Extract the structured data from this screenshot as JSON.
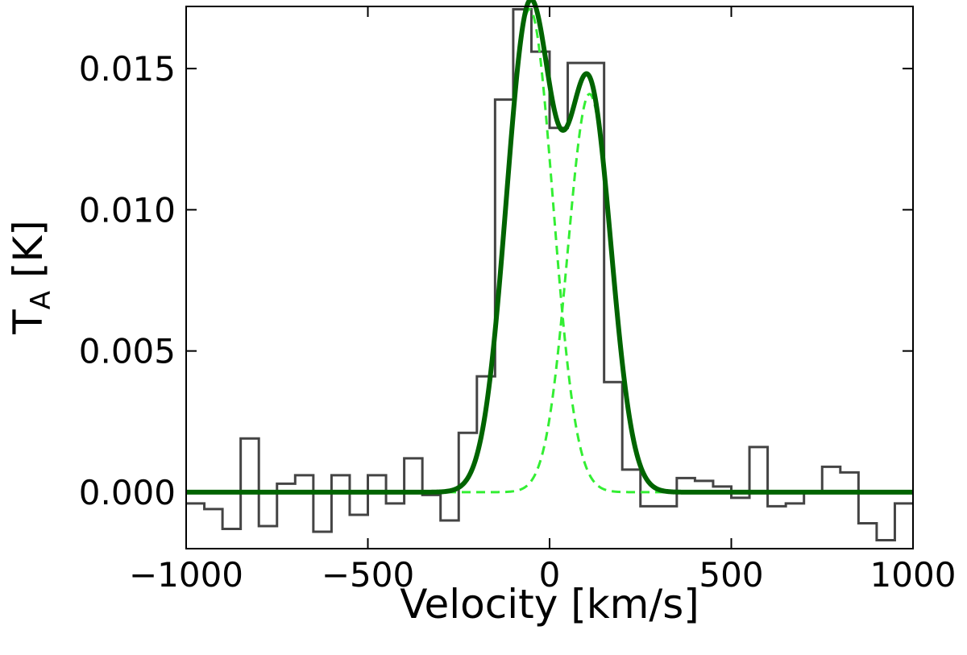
{
  "chart_data": {
    "type": "line",
    "title": "",
    "xlabel": "Velocity [km/s]",
    "ylabel_main": "T",
    "ylabel_sub": "A",
    "ylabel_unit": " [K]",
    "xlim": [
      -1000,
      1000
    ],
    "ylim": [
      -0.002,
      0.0172
    ],
    "xticks": [
      -1000,
      -500,
      0,
      500,
      1000
    ],
    "xtick_labels": [
      "−1000",
      "−500",
      "0",
      "500",
      "1000"
    ],
    "yticks": [
      0.0,
      0.005,
      0.01,
      0.015
    ],
    "ytick_labels": [
      "0.000",
      "0.005",
      "0.010",
      "0.015"
    ],
    "grid": false,
    "colors": {
      "spectrum": "#444444",
      "total_fit": "#006400",
      "components": "#33ee33"
    },
    "series": [
      {
        "kind": "step",
        "x_edges": [
          -1000,
          -950,
          -900,
          -850,
          -800,
          -750,
          -700,
          -650,
          -600,
          -550,
          -500,
          -450,
          -400,
          -350,
          -300,
          -250,
          -200,
          -150,
          -100,
          -50,
          0,
          50,
          100,
          150,
          200,
          250,
          300,
          350,
          400,
          450,
          500,
          550,
          600,
          650,
          700,
          750,
          800,
          850,
          900,
          950,
          1000
        ],
        "values": [
          -0.0004,
          -0.0006,
          -0.0013,
          0.0019,
          -0.0012,
          0.0003,
          0.0006,
          -0.0014,
          0.0006,
          -0.0008,
          0.0006,
          -0.0004,
          0.0012,
          -0.0001,
          -0.001,
          0.0021,
          0.0041,
          0.0139,
          0.0171,
          0.0156,
          0.0129,
          0.0152,
          0.0152,
          0.0039,
          0.0008,
          -0.0005,
          -0.0005,
          0.0005,
          0.0004,
          0.0002,
          -0.0002,
          0.0016,
          -0.0005,
          -0.0004,
          0.0,
          0.0009,
          0.0007,
          -0.0011,
          -0.0017,
          -0.0004
        ]
      },
      {
        "kind": "gaussian_sum",
        "components": [
          {
            "amp": 0.0171,
            "center": -55,
            "sigma": 64
          },
          {
            "amp": 0.0141,
            "center": 110,
            "sigma": 60
          }
        ]
      },
      {
        "kind": "gaussian_component",
        "amp": 0.0171,
        "center": -55,
        "sigma": 64
      },
      {
        "kind": "gaussian_component",
        "amp": 0.0141,
        "center": 110,
        "sigma": 60
      }
    ]
  }
}
